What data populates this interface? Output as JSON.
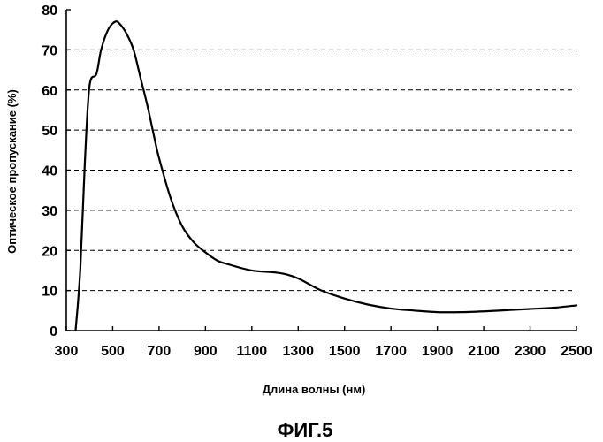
{
  "chart_data": {
    "type": "line",
    "title": "",
    "xlabel": "Длина волны (нм)",
    "ylabel": "Оптическое пропускание (%)",
    "caption": "ФИГ.5",
    "xlim": [
      300,
      2500
    ],
    "ylim": [
      0,
      80
    ],
    "x_ticks": [
      300,
      500,
      700,
      900,
      1100,
      1300,
      1500,
      1700,
      1900,
      2100,
      2300,
      2500
    ],
    "y_ticks": [
      0,
      10,
      20,
      30,
      40,
      50,
      60,
      70,
      80
    ],
    "grid": "horizontal-dashed",
    "legend": "none",
    "series": [
      {
        "color": "#000000",
        "x": [
          340,
          360,
          380,
          400,
          430,
          450,
          480,
          510,
          530,
          560,
          590,
          620,
          650,
          680,
          700,
          750,
          800,
          850,
          900,
          950,
          1000,
          1100,
          1200,
          1250,
          1300,
          1350,
          1400,
          1500,
          1600,
          1700,
          1800,
          1900,
          2000,
          2100,
          2200,
          2300,
          2400,
          2500
        ],
        "y": [
          0,
          15,
          42,
          61,
          64,
          70,
          75,
          77,
          76.5,
          74,
          70,
          63,
          56,
          48,
          43,
          33,
          26,
          22,
          19.5,
          17.5,
          16.5,
          15,
          14.5,
          14,
          13,
          11.5,
          10,
          8,
          6.5,
          5.5,
          5,
          4.6,
          4.6,
          4.8,
          5.1,
          5.4,
          5.7,
          6.3
        ]
      }
    ]
  }
}
